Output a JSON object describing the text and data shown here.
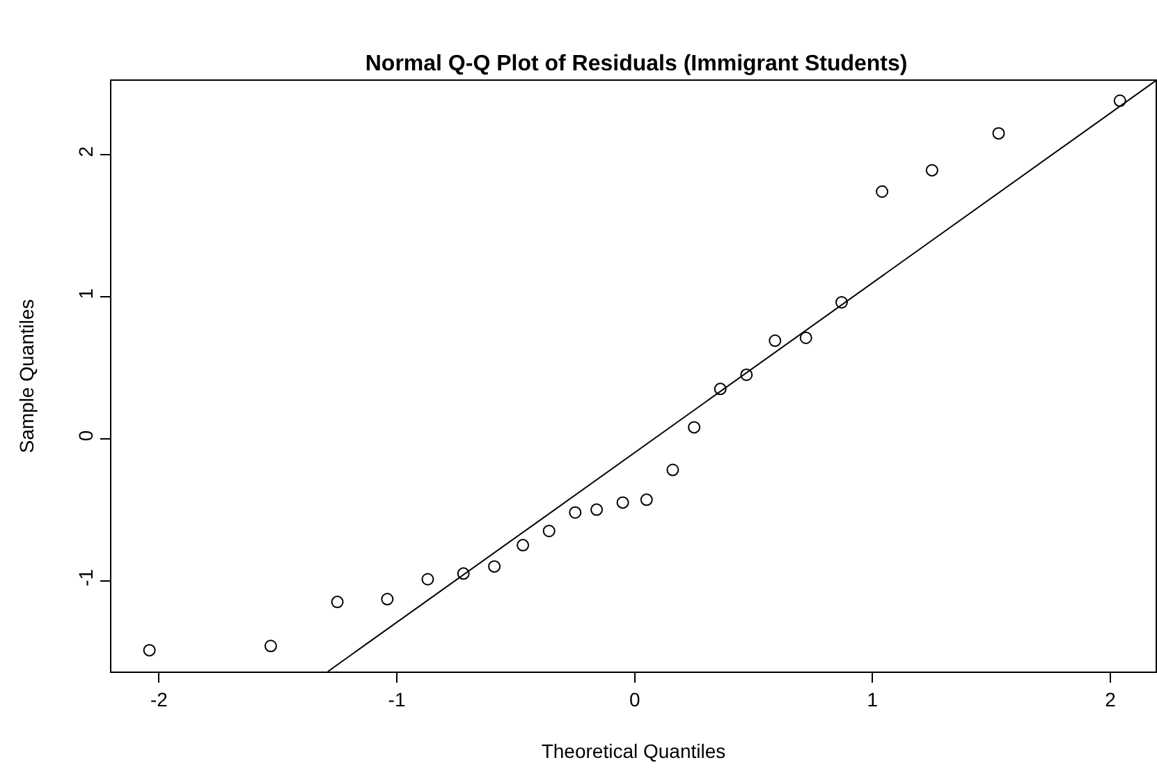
{
  "chart_data": {
    "type": "scatter",
    "title": "Normal Q-Q Plot of Residuals (Immigrant Students)",
    "xlabel": "Theoretical Quantiles",
    "ylabel": "Sample Quantiles",
    "xlim": [
      -2.2,
      2.19
    ],
    "ylim": [
      -1.64,
      2.52
    ],
    "xticks": [
      -2,
      -1,
      0,
      1,
      2
    ],
    "yticks": [
      -1,
      0,
      1,
      2
    ],
    "marker": "circle",
    "series": [
      {
        "color": "#000000",
        "x": [
          -2.04,
          -1.53,
          -1.25,
          -1.04,
          -0.87,
          -0.72,
          -0.59,
          -0.47,
          -0.36,
          -0.25,
          -0.16,
          -0.05,
          0.05,
          0.16,
          0.25,
          0.36,
          0.47,
          0.59,
          0.72,
          0.87,
          1.04,
          1.25,
          1.53,
          2.04
        ],
        "values": [
          -1.49,
          -1.46,
          -1.15,
          -1.13,
          -0.99,
          -0.95,
          -0.9,
          -0.75,
          -0.65,
          -0.52,
          -0.5,
          -0.45,
          -0.43,
          -0.22,
          0.08,
          0.35,
          0.45,
          0.69,
          0.71,
          0.96,
          1.74,
          1.89,
          2.15,
          2.38
        ]
      },
      {
        "type": "line",
        "marker": "none",
        "color": "#000000",
        "x": [
          -1.29,
          2.19
        ],
        "values": [
          -1.64,
          2.52
        ]
      }
    ]
  }
}
